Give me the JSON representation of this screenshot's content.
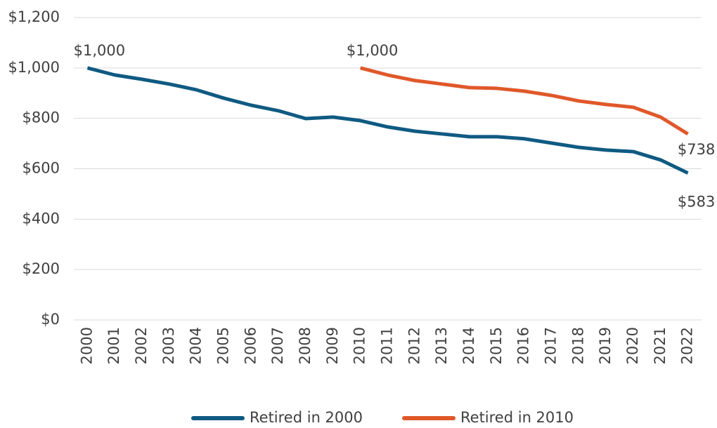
{
  "chart_data": {
    "type": "line",
    "categories": [
      "2000",
      "2001",
      "2002",
      "2003",
      "2004",
      "2005",
      "2006",
      "2007",
      "2008",
      "2009",
      "2010",
      "2011",
      "2012",
      "2013",
      "2014",
      "2015",
      "2016",
      "2017",
      "2018",
      "2019",
      "2020",
      "2021",
      "2022"
    ],
    "series": [
      {
        "name": "Retired in 2000",
        "color": "#0f5a82",
        "values": [
          1000,
          972,
          955,
          936,
          913,
          880,
          852,
          830,
          799,
          805,
          791,
          766,
          749,
          738,
          727,
          727,
          719,
          702,
          685,
          674,
          668,
          635,
          583
        ],
        "value_labels": [
          "$1,000",
          null,
          null,
          null,
          null,
          null,
          null,
          null,
          null,
          null,
          null,
          null,
          null,
          null,
          null,
          null,
          null,
          null,
          null,
          null,
          null,
          null,
          "$583"
        ]
      },
      {
        "name": "Retired in 2010",
        "color": "#e0582a",
        "values": [
          null,
          null,
          null,
          null,
          null,
          null,
          null,
          null,
          null,
          null,
          1000,
          972,
          950,
          936,
          922,
          919,
          908,
          891,
          869,
          855,
          844,
          805,
          738
        ],
        "value_labels": [
          null,
          null,
          null,
          null,
          null,
          null,
          null,
          null,
          null,
          null,
          "$1,000",
          null,
          null,
          null,
          null,
          null,
          null,
          null,
          null,
          null,
          null,
          null,
          "$738"
        ]
      }
    ],
    "ylim": [
      0,
      1200
    ],
    "yticks": [
      {
        "value": 0,
        "label": "$0"
      },
      {
        "value": 200,
        "label": "$200"
      },
      {
        "value": 400,
        "label": "$400"
      },
      {
        "value": 600,
        "label": "$600"
      },
      {
        "value": 800,
        "label": "$800"
      },
      {
        "value": 1000,
        "label": "$1,000"
      },
      {
        "value": 1200,
        "label": "$1,200"
      }
    ],
    "grid": true,
    "legend": "bottom"
  }
}
